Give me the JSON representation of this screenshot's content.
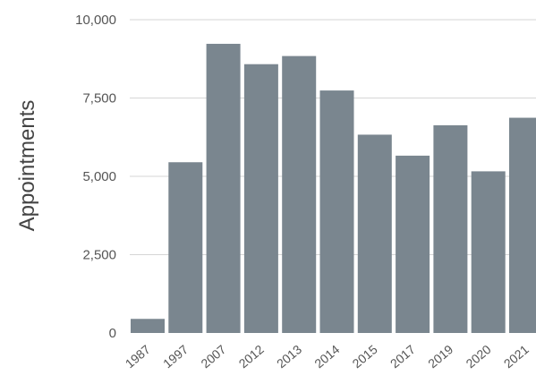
{
  "chart_data": {
    "type": "bar",
    "title": "",
    "xlabel": "",
    "ylabel": "Appointments",
    "categories": [
      "1987",
      "1997",
      "2007",
      "2012",
      "2013",
      "2014",
      "2015",
      "2017",
      "2019",
      "2020",
      "2021"
    ],
    "values": [
      450,
      5450,
      9230,
      8580,
      8840,
      7740,
      6330,
      5660,
      6630,
      5160,
      6870
    ],
    "ylim": [
      0,
      10000
    ],
    "yticks": [
      0,
      2500,
      5000,
      7500,
      10000
    ],
    "ytick_labels": [
      "0",
      "2,500",
      "5,000",
      "7,500",
      "10,000"
    ],
    "grid": true,
    "bar_color": "#7a868f",
    "grid_color": "#d6d6d6"
  }
}
